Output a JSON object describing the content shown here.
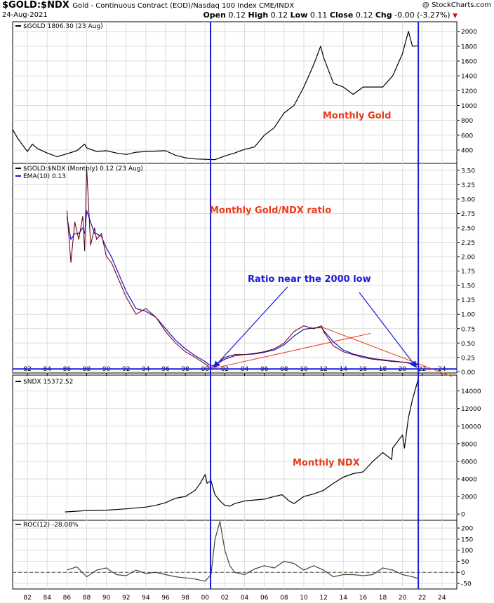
{
  "header": {
    "symbol": "$GOLD:$NDX",
    "description": "Gold - Continuous Contract (EOD)/Nasdaq 100 Index  CME/INDX",
    "date": "24-Aug-2021",
    "watermark": "@ StockCharts.com",
    "open_label": "Open",
    "open": "0.12",
    "high_label": "High",
    "high": "0.12",
    "low_label": "Low",
    "low": "0.11",
    "close_label": "Close",
    "close": "0.12",
    "chg_label": "Chg",
    "chg": "-0.00 (-3.27%)"
  },
  "colors": {
    "price": "#000000",
    "ema": "#1515c8",
    "ratio": "#d0102a",
    "roc": "#3a4a2a",
    "annotation_red": "#e83c1a",
    "annotation_blue": "#1a1ad6",
    "vline": "#1a1ad6",
    "grid": "#dcdcdc"
  },
  "chart_data": [
    {
      "type": "line",
      "panel": "gold",
      "legend": "$GOLD 1806.30 (23 Aug)",
      "annotation": "Monthly Gold",
      "x_ticks": [
        "82",
        "84",
        "86",
        "88",
        "90",
        "92",
        "94",
        "96",
        "98",
        "00",
        "02",
        "04",
        "06",
        "08",
        "10",
        "12",
        "14",
        "16",
        "18",
        "20",
        "22",
        "24"
      ],
      "y_ticks": [
        400,
        600,
        800,
        1000,
        1200,
        1400,
        1600,
        1800,
        2000
      ],
      "x": [
        1980.5,
        1981,
        1982,
        1982.5,
        1983,
        1984,
        1985,
        1985.5,
        1986,
        1987,
        1987.8,
        1988,
        1989,
        1990,
        1991,
        1992,
        1993,
        1994,
        1995,
        1996,
        1997,
        1998,
        1999,
        2000,
        2001,
        2002,
        2003,
        2004,
        2005,
        2006,
        2007,
        2008,
        2009,
        2010,
        2011,
        2011.7,
        2012,
        2013,
        2014,
        2015,
        2016,
        2017,
        2018,
        2019,
        2020,
        2020.6,
        2021,
        2021.6
      ],
      "y": [
        680,
        560,
        380,
        480,
        420,
        360,
        310,
        330,
        350,
        390,
        480,
        430,
        380,
        390,
        360,
        340,
        370,
        380,
        385,
        390,
        330,
        295,
        280,
        275,
        270,
        320,
        360,
        410,
        440,
        600,
        700,
        900,
        1000,
        1250,
        1550,
        1800,
        1650,
        1300,
        1250,
        1150,
        1250,
        1250,
        1250,
        1400,
        1700,
        2000,
        1800,
        1806
      ]
    },
    {
      "type": "line",
      "panel": "ratio",
      "legend": "$GOLD:$NDX (Monthly) 0.12 (23 Aug)",
      "ema_legend": "EMA(10) 0.13",
      "annotation_title": "Monthly Gold/NDX ratio",
      "annotation_callout": "Ratio near the 2000 low",
      "y_ticks": [
        0.0,
        0.25,
        0.5,
        0.75,
        1.0,
        1.25,
        1.5,
        1.75,
        2.0,
        2.25,
        2.5,
        2.75,
        3.0,
        3.25,
        3.5
      ],
      "x": [
        1986,
        1986.4,
        1986.8,
        1987.2,
        1987.6,
        1987.8,
        1988,
        1988.4,
        1988.8,
        1989,
        1989.5,
        1990,
        1990.5,
        1991,
        1991.5,
        1992,
        1993,
        1994,
        1995,
        1996,
        1997,
        1998,
        1999,
        2000,
        2000.6,
        2001,
        2002,
        2003,
        2004,
        2005,
        2006,
        2007,
        2008,
        2009,
        2010,
        2011,
        2011.8,
        2012,
        2013,
        2014,
        2015,
        2016,
        2017,
        2018,
        2019,
        2020,
        2021,
        2021.6
      ],
      "y": [
        2.8,
        1.9,
        2.6,
        2.3,
        2.7,
        2.1,
        3.55,
        2.2,
        2.5,
        2.3,
        2.4,
        2.0,
        1.9,
        1.7,
        1.5,
        1.3,
        1.0,
        1.1,
        0.95,
        0.7,
        0.5,
        0.35,
        0.25,
        0.14,
        0.06,
        0.12,
        0.25,
        0.3,
        0.3,
        0.32,
        0.35,
        0.4,
        0.5,
        0.7,
        0.8,
        0.75,
        0.8,
        0.7,
        0.45,
        0.35,
        0.3,
        0.25,
        0.22,
        0.2,
        0.18,
        0.17,
        0.14,
        0.12
      ],
      "ema_y": [
        2.7,
        2.3,
        2.4,
        2.4,
        2.5,
        2.4,
        2.8,
        2.6,
        2.4,
        2.4,
        2.35,
        2.15,
        2.0,
        1.8,
        1.6,
        1.4,
        1.1,
        1.05,
        0.95,
        0.75,
        0.55,
        0.4,
        0.28,
        0.18,
        0.1,
        0.12,
        0.22,
        0.28,
        0.3,
        0.31,
        0.34,
        0.38,
        0.47,
        0.62,
        0.74,
        0.76,
        0.77,
        0.72,
        0.52,
        0.38,
        0.31,
        0.27,
        0.23,
        0.21,
        0.19,
        0.17,
        0.15,
        0.13
      ],
      "trendlines": [
        {
          "x": [
            2000.8,
            2016.8
          ],
          "y": [
            0.06,
            0.67
          ]
        },
        {
          "x": [
            2011.8,
            2025
          ],
          "y": [
            0.78,
            -0.08
          ]
        }
      ],
      "hline_value": 0.05
    },
    {
      "type": "line",
      "panel": "ndx",
      "legend": "$NDX 15372.52",
      "annotation": "Monthly NDX",
      "y_ticks": [
        0,
        2000,
        4000,
        6000,
        8000,
        10000,
        12000,
        14000
      ],
      "x": [
        1985.8,
        1988,
        1990,
        1992,
        1994,
        1995,
        1996,
        1997,
        1998,
        1999,
        1999.5,
        2000,
        2000.2,
        2000.6,
        2001,
        2001.5,
        2002,
        2002.5,
        2003,
        2004,
        2005,
        2006,
        2007,
        2007.8,
        2008.5,
        2009,
        2010,
        2011,
        2012,
        2013,
        2014,
        2015,
        2016,
        2017,
        2018,
        2018.9,
        2019,
        2020,
        2020.2,
        2020.6,
        2021,
        2021.6
      ],
      "y": [
        250,
        400,
        450,
        600,
        800,
        1000,
        1300,
        1800,
        2000,
        2700,
        3500,
        4500,
        3500,
        3800,
        2200,
        1500,
        1000,
        900,
        1200,
        1500,
        1600,
        1700,
        2000,
        2200,
        1500,
        1200,
        2000,
        2300,
        2700,
        3500,
        4200,
        4600,
        4800,
        6000,
        7000,
        6200,
        7500,
        9000,
        7500,
        11000,
        13000,
        15370
      ]
    },
    {
      "type": "line",
      "panel": "roc",
      "legend": "ROC(12) -28.08%",
      "y_ticks": [
        -50,
        0,
        50,
        100,
        150,
        200
      ],
      "reference_value": 0,
      "x": [
        1986,
        1987,
        1988,
        1989,
        1990,
        1991,
        1992,
        1993,
        1994,
        1995,
        1996,
        1997,
        1998,
        1999,
        2000,
        2000.6,
        2001,
        2001.5,
        2002,
        2002.5,
        2003,
        2004,
        2005,
        2006,
        2007,
        2008,
        2009,
        2010,
        2011,
        2012,
        2013,
        2014,
        2015,
        2016,
        2017,
        2018,
        2019,
        2020,
        2021,
        2021.6
      ],
      "y": [
        10,
        25,
        -20,
        10,
        20,
        -10,
        -15,
        10,
        -5,
        0,
        -10,
        -20,
        -25,
        -30,
        -40,
        -10,
        150,
        230,
        100,
        30,
        0,
        -10,
        15,
        30,
        20,
        50,
        40,
        10,
        30,
        10,
        -20,
        -10,
        -10,
        -15,
        -10,
        20,
        10,
        -10,
        -20,
        -28
      ]
    }
  ]
}
